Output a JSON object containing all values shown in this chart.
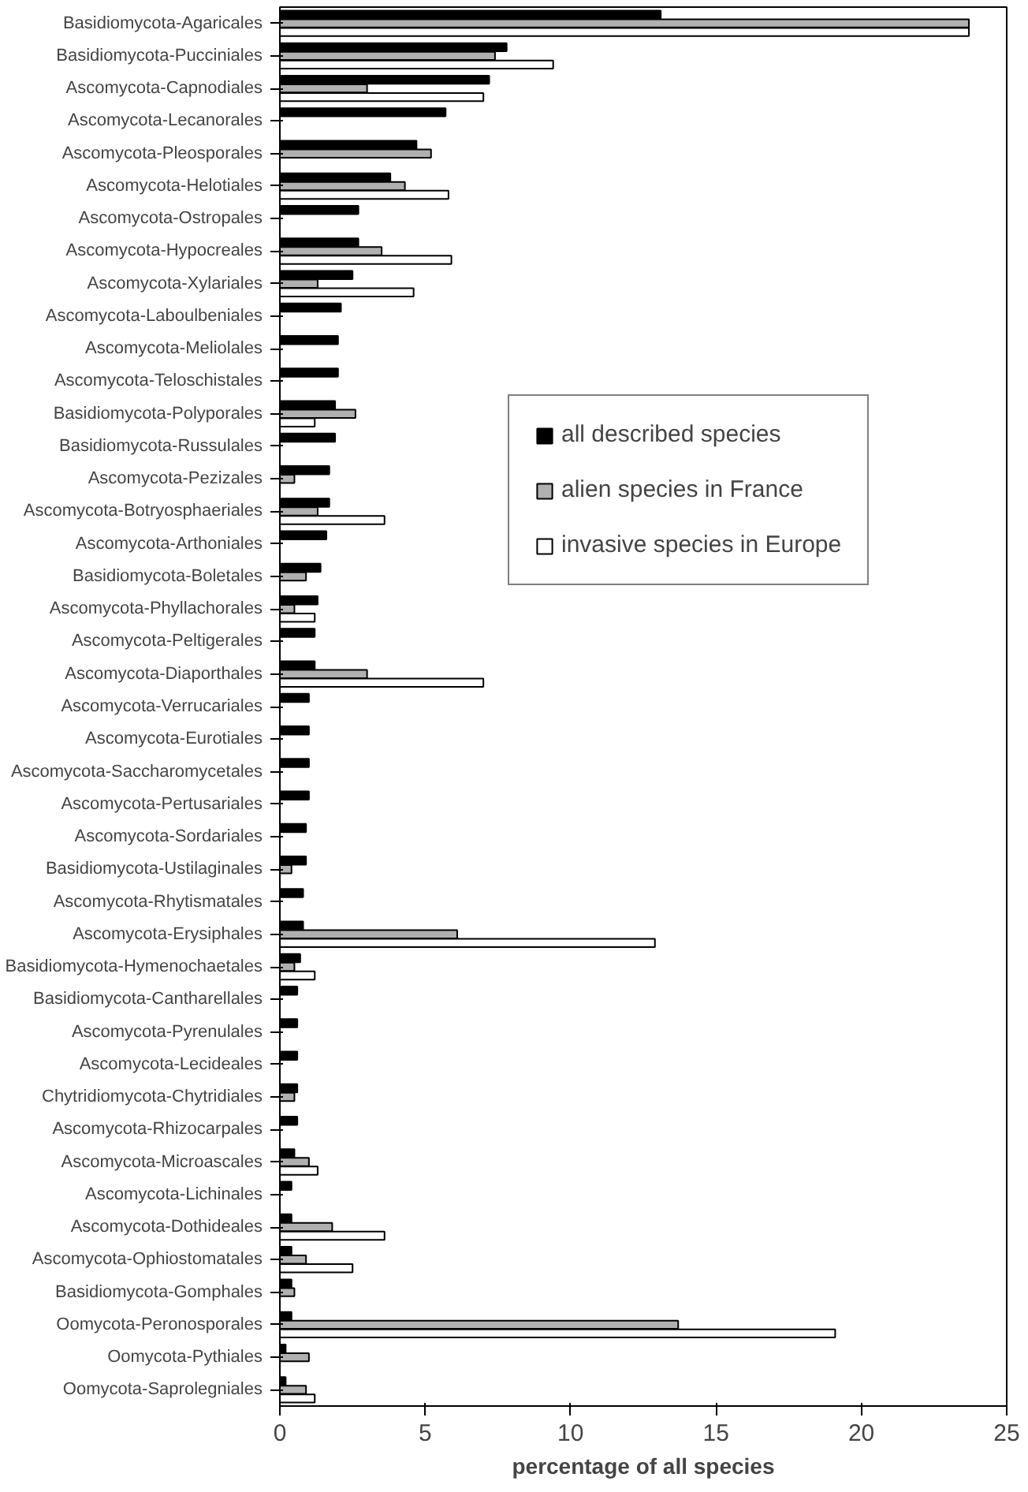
{
  "chart_data": {
    "type": "bar",
    "orientation": "horizontal",
    "xlabel": "percentage of all species",
    "categories": [
      "Basidiomycota-Agaricales",
      "Basidiomycota-Pucciniales",
      "Ascomycota-Capnodiales",
      "Ascomycota-Lecanorales",
      "Ascomycota-Pleosporales",
      "Ascomycota-Helotiales",
      "Ascomycota-Ostropales",
      "Ascomycota-Hypocreales",
      "Ascomycota-Xylariales",
      "Ascomycota-Laboulbeniales",
      "Ascomycota-Meliolales",
      "Ascomycota-Teloschistales",
      "Basidiomycota-Polyporales",
      "Basidiomycota-Russulales",
      "Ascomycota-Pezizales",
      "Ascomycota-Botryosphaeriales",
      "Ascomycota-Arthoniales",
      "Basidiomycota-Boletales",
      "Ascomycota-Phyllachorales",
      "Ascomycota-Peltigerales",
      "Ascomycota-Diaporthales",
      "Ascomycota-Verrucariales",
      "Ascomycota-Eurotiales",
      "Ascomycota-Saccharomycetales",
      "Ascomycota-Pertusariales",
      "Ascomycota-Sordariales",
      "Basidiomycota-Ustilaginales",
      "Ascomycota-Rhytismatales",
      "Ascomycota-Erysiphales",
      "Basidiomycota-Hymenochaetales",
      "Basidiomycota-Cantharellales",
      "Ascomycota-Pyrenulales",
      "Ascomycota-Lecideales",
      "Chytridiomycota-Chytridiales",
      "Ascomycota-Rhizocarpales",
      "Ascomycota-Microascales",
      "Ascomycota-Lichinales",
      "Ascomycota-Dothideales",
      "Ascomycota-Ophiostomatales",
      "Basidiomycota-Gomphales",
      "Oomycota-Peronosporales",
      "Oomycota-Pythiales",
      "Oomycota-Saprolegniales"
    ],
    "series": [
      {
        "name": "all described species",
        "color": "#000000",
        "values": [
          13.1,
          7.8,
          7.2,
          5.7,
          4.7,
          3.8,
          2.7,
          2.7,
          2.5,
          2.1,
          2.0,
          2.0,
          1.9,
          1.9,
          1.7,
          1.7,
          1.6,
          1.4,
          1.3,
          1.2,
          1.2,
          1.0,
          1.0,
          1.0,
          1.0,
          0.9,
          0.9,
          0.8,
          0.8,
          0.7,
          0.6,
          0.6,
          0.6,
          0.6,
          0.6,
          0.5,
          0.4,
          0.4,
          0.4,
          0.4,
          0.4,
          0.2,
          0.2
        ]
      },
      {
        "name": "alien species in France",
        "color": "#b0b0b0",
        "values": [
          23.7,
          7.4,
          3.0,
          null,
          5.2,
          4.3,
          null,
          3.5,
          1.3,
          null,
          null,
          null,
          2.6,
          null,
          0.5,
          1.3,
          null,
          0.9,
          0.5,
          null,
          3.0,
          null,
          null,
          null,
          null,
          null,
          0.4,
          null,
          6.1,
          0.5,
          null,
          null,
          null,
          0.5,
          null,
          1.0,
          null,
          1.8,
          0.9,
          0.5,
          13.7,
          1.0,
          0.9
        ]
      },
      {
        "name": "invasive species in Europe",
        "color": "#ffffff",
        "values": [
          23.7,
          9.4,
          7.0,
          null,
          null,
          5.8,
          null,
          5.9,
          4.6,
          null,
          null,
          null,
          1.2,
          null,
          null,
          3.6,
          null,
          null,
          1.2,
          null,
          7.0,
          null,
          null,
          null,
          null,
          null,
          null,
          null,
          12.9,
          1.2,
          null,
          null,
          null,
          null,
          null,
          1.3,
          null,
          3.6,
          2.5,
          null,
          19.1,
          null,
          1.2
        ]
      }
    ],
    "xlim": [
      0,
      25
    ],
    "xticks": [
      0,
      5,
      10,
      15,
      20,
      25
    ],
    "grid": false,
    "legend": "right"
  }
}
